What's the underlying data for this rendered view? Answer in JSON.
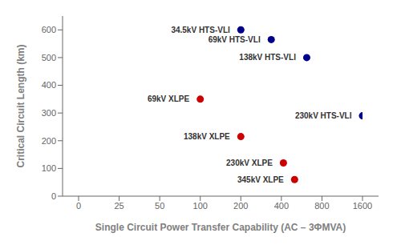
{
  "chart_data": {
    "type": "scatter",
    "xlabel": "Single Circuit Power Transfer Capability (AC – 3ΦMVA)",
    "ylabel": "Critical Circuit Length (km)",
    "xlim": [
      0,
      1600
    ],
    "xticks": [
      0,
      25,
      50,
      100,
      200,
      400,
      800,
      1600
    ],
    "ylim": [
      0,
      650
    ],
    "yticks": [
      0,
      100,
      200,
      300,
      400,
      500,
      600
    ],
    "grid": false,
    "series": [
      {
        "color": "#00008B",
        "x": [
          200,
          350,
          650,
          1600
        ],
        "values": [
          600,
          565,
          500,
          290
        ],
        "labels": [
          "34.5kV HTS-VLI",
          "69kV HTS-VLI",
          "138kV HTS-VLI",
          "230kV HTS-VLI"
        ]
      },
      {
        "color": "#CC0000",
        "x": [
          100,
          200,
          420,
          530
        ],
        "values": [
          350,
          215,
          120,
          60
        ],
        "labels": [
          "69kV XLPE",
          "138kV XLPE",
          "230kV XLPE",
          "345kV XLPE"
        ]
      }
    ]
  }
}
